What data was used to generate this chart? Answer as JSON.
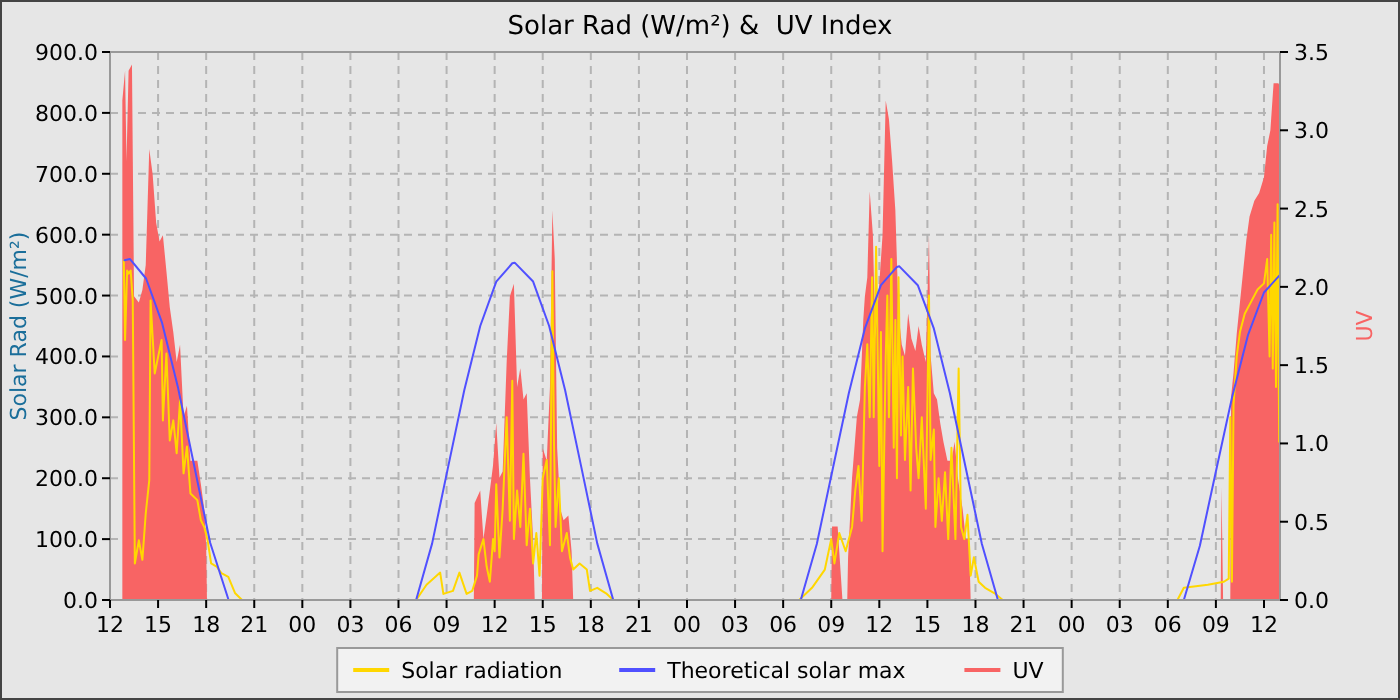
{
  "chart_data": {
    "type": "line",
    "title": "Solar Rad (W/m²) &  UV Index",
    "ylabel": "Solar Rad (W/m²)",
    "y2label": "UV",
    "xlim": [
      12,
      85
    ],
    "xticks": [
      {
        "value": 12,
        "label": "12"
      },
      {
        "value": 15,
        "label": "15"
      },
      {
        "value": 18,
        "label": "18"
      },
      {
        "value": 21,
        "label": "21"
      },
      {
        "value": 24,
        "label": "00"
      },
      {
        "value": 27,
        "label": "03"
      },
      {
        "value": 30,
        "label": "06"
      },
      {
        "value": 33,
        "label": "09"
      },
      {
        "value": 36,
        "label": "12"
      },
      {
        "value": 39,
        "label": "15"
      },
      {
        "value": 42,
        "label": "18"
      },
      {
        "value": 45,
        "label": "21"
      },
      {
        "value": 48,
        "label": "00"
      },
      {
        "value": 51,
        "label": "03"
      },
      {
        "value": 54,
        "label": "06"
      },
      {
        "value": 57,
        "label": "09"
      },
      {
        "value": 60,
        "label": "12"
      },
      {
        "value": 63,
        "label": "15"
      },
      {
        "value": 66,
        "label": "18"
      },
      {
        "value": 69,
        "label": "21"
      },
      {
        "value": 72,
        "label": "00"
      },
      {
        "value": 75,
        "label": "03"
      },
      {
        "value": 78,
        "label": "06"
      },
      {
        "value": 81,
        "label": "09"
      },
      {
        "value": 84,
        "label": "12"
      }
    ],
    "ylim": [
      0,
      900
    ],
    "yticks": [
      {
        "value": 0,
        "label": "0.0"
      },
      {
        "value": 100,
        "label": "100.0"
      },
      {
        "value": 200,
        "label": "200.0"
      },
      {
        "value": 300,
        "label": "300.0"
      },
      {
        "value": 400,
        "label": "400.0"
      },
      {
        "value": 500,
        "label": "500.0"
      },
      {
        "value": 600,
        "label": "600.0"
      },
      {
        "value": 700,
        "label": "700.0"
      },
      {
        "value": 800,
        "label": "800.0"
      },
      {
        "value": 900,
        "label": "900.0"
      }
    ],
    "y2lim": [
      0,
      3.5
    ],
    "y2ticks": [
      {
        "value": 0,
        "label": "0.0"
      },
      {
        "value": 0.5,
        "label": "0.5"
      },
      {
        "value": 1,
        "label": "1.0"
      },
      {
        "value": 1.5,
        "label": "1.5"
      },
      {
        "value": 2,
        "label": "2.0"
      },
      {
        "value": 2.5,
        "label": "2.5"
      },
      {
        "value": 3,
        "label": "3.0"
      },
      {
        "value": 3.5,
        "label": "3.5"
      }
    ],
    "grid": true,
    "legend": "bottom",
    "series": [
      {
        "name": "Solar radiation",
        "color": "#ffd700",
        "x": [
          12.86,
          12.94,
          13.07,
          13.16,
          13.29,
          13.42,
          13.55,
          13.8,
          14.02,
          14.23,
          14.45,
          14.53,
          14.79,
          14.96,
          15.22,
          15.3,
          15.52,
          15.73,
          15.95,
          16.16,
          16.37,
          16.59,
          16.8,
          17.02,
          17.45,
          17.67,
          17.88,
          18.09,
          18.31,
          18.65,
          18.95,
          19.38,
          19.81,
          20.24,
          30.8,
          31.1,
          31.75,
          32.6,
          32.8,
          33.4,
          33.8,
          34.25,
          34.6,
          34.9,
          35.0,
          35.3,
          35.5,
          35.7,
          35.9,
          36.0,
          36.1,
          36.3,
          36.5,
          36.75,
          36.95,
          37.1,
          37.2,
          37.4,
          37.6,
          37.8,
          38.0,
          38.2,
          38.4,
          38.6,
          38.8,
          39.0,
          39.25,
          39.45,
          39.6,
          39.7,
          39.8,
          40.0,
          40.2,
          40.5,
          40.7,
          40.9,
          41.3,
          41.75,
          41.95,
          42.4,
          43.0,
          43.4,
          55.0,
          55.8,
          56.6,
          57.0,
          57.2,
          57.5,
          57.9,
          58.3,
          58.5,
          58.7,
          58.9,
          59.1,
          59.25,
          59.4,
          59.55,
          59.65,
          59.8,
          60.0,
          60.1,
          60.2,
          60.4,
          60.5,
          60.6,
          60.75,
          60.9,
          61.0,
          61.1,
          61.2,
          61.35,
          61.45,
          61.6,
          61.8,
          61.95,
          62.1,
          62.3,
          62.45,
          62.65,
          62.9,
          63.1,
          63.2,
          63.4,
          63.5,
          63.7,
          63.9,
          64.1,
          64.3,
          64.5,
          64.75,
          64.95,
          65.1,
          65.3,
          65.5,
          65.7,
          65.9,
          66.2,
          66.6,
          67.25,
          67.7,
          78.6,
          79.0,
          80.5,
          81.5,
          81.8,
          81.9,
          82.0,
          82.1,
          82.3,
          82.5,
          82.8,
          83.2,
          83.6,
          84.0,
          84.2,
          84.35,
          84.45,
          84.55,
          84.65,
          84.75,
          84.85,
          84.95
        ],
        "values": [
          558,
          427,
          541,
          536,
          541,
          492,
          60,
          98,
          66,
          142,
          197,
          492,
          372,
          394,
          427,
          295,
          405,
          262,
          295,
          241,
          328,
          208,
          252,
          175,
          164,
          131,
          120,
          98,
          60,
          55,
          44,
          38,
          11,
          0,
          0,
          0,
          25,
          45,
          10,
          15,
          45,
          10,
          15,
          40,
          75,
          100,
          55,
          30,
          100,
          80,
          190,
          70,
          150,
          300,
          130,
          360,
          100,
          180,
          120,
          240,
          90,
          150,
          60,
          110,
          40,
          200,
          230,
          90,
          540,
          260,
          120,
          200,
          80,
          110,
          70,
          50,
          60,
          50,
          15,
          20,
          10,
          0,
          0,
          20,
          50,
          100,
          60,
          110,
          80,
          120,
          180,
          220,
          130,
          350,
          420,
          300,
          530,
          300,
          580,
          220,
          440,
          80,
          400,
          500,
          300,
          560,
          250,
          460,
          200,
          530,
          270,
          400,
          230,
          350,
          180,
          380,
          250,
          200,
          300,
          150,
          500,
          230,
          280,
          120,
          200,
          130,
          210,
          100,
          250,
          100,
          380,
          120,
          100,
          140,
          40,
          70,
          30,
          20,
          10,
          0,
          0,
          20,
          25,
          30,
          35,
          300,
          30,
          320,
          400,
          440,
          470,
          490,
          510,
          520,
          560,
          400,
          600,
          380,
          620,
          350,
          650,
          260
        ]
      },
      {
        "name": "Theoretical solar max",
        "color": "#5050ff",
        "x": [
          12.9,
          13.25,
          14.25,
          15.25,
          16.25,
          17.25,
          18.25,
          19.4,
          31.1,
          32.1,
          33.1,
          34.1,
          35.1,
          36.1,
          37.1,
          37.25,
          38.4,
          39.4,
          40.4,
          41.4,
          42.4,
          43.4,
          55.1,
          56.1,
          57.1,
          58.1,
          59.1,
          60.1,
          61.1,
          61.25,
          62.4,
          63.4,
          64.4,
          65.4,
          66.4,
          67.4,
          79.0,
          80.0,
          81.0,
          82.0,
          83.0,
          84.0,
          85.0
        ],
        "values": [
          558,
          560,
          528,
          455,
          348,
          221,
          94,
          0,
          0,
          93,
          219,
          344,
          450,
          523,
          553,
          554,
          523,
          450,
          344,
          219,
          93,
          0,
          0,
          92,
          216,
          340,
          446,
          517,
          547,
          548,
          517,
          446,
          340,
          216,
          92,
          0,
          0,
          89,
          211,
          332,
          435,
          505,
          534
        ]
      },
      {
        "name": "UV",
        "type": "area",
        "axis": "y2",
        "color": "#f86464",
        "x": [
          12.77,
          12.94,
          13.03,
          13.16,
          13.37,
          13.5,
          13.8,
          14.02,
          14.23,
          14.45,
          14.66,
          14.88,
          15.09,
          15.3,
          15.52,
          15.73,
          15.95,
          16.16,
          16.37,
          16.59,
          16.8,
          17.02,
          17.45,
          17.67,
          17.88,
          18.0,
          18.05,
          34.7,
          34.75,
          35.1,
          35.3,
          35.5,
          35.7,
          35.9,
          36.1,
          36.3,
          36.5,
          36.75,
          36.95,
          37.2,
          37.4,
          37.6,
          37.8,
          38.0,
          38.2,
          38.4,
          38.5,
          38.95,
          39.0,
          39.25,
          39.45,
          39.6,
          39.75,
          39.9,
          40.1,
          40.3,
          40.6,
          40.8,
          40.9,
          57.0,
          57.05,
          57.4,
          57.7,
          58.0,
          58.05,
          58.3,
          58.6,
          58.8,
          59.0,
          59.1,
          59.25,
          59.4,
          59.6,
          59.75,
          60.0,
          60.2,
          60.4,
          60.6,
          60.8,
          61.0,
          61.2,
          61.4,
          61.6,
          61.8,
          62.0,
          62.25,
          62.45,
          62.65,
          62.9,
          63.1,
          63.2,
          63.4,
          63.6,
          63.8,
          64.0,
          64.25,
          64.5,
          64.7,
          64.9,
          65.2,
          65.4,
          65.6,
          65.7,
          81.3,
          81.35,
          81.45,
          81.9,
          81.95,
          82.1,
          82.3,
          82.5,
          82.7,
          82.9,
          83.1,
          83.4,
          83.7,
          84.0,
          84.2,
          84.4,
          84.6,
          84.9,
          85.0
        ],
        "values": [
          3.19,
          3.38,
          2.8,
          3.38,
          3.42,
          1.94,
          1.9,
          1.98,
          2.14,
          2.88,
          2.72,
          2.41,
          2.29,
          2.33,
          2.1,
          1.87,
          1.71,
          1.52,
          1.63,
          1.17,
          1.24,
          0.89,
          0.89,
          0.74,
          0.58,
          0.35,
          0,
          0,
          0.62,
          0.7,
          0.39,
          0.54,
          0.7,
          0.86,
          1.13,
          0.78,
          0.82,
          1.52,
          1.94,
          2.02,
          1.36,
          1.48,
          1.28,
          1.32,
          0.78,
          0.39,
          0,
          0,
          0.97,
          0.89,
          1.36,
          2.49,
          2.18,
          0.97,
          0.58,
          0.51,
          0.54,
          0.31,
          0,
          0,
          0.47,
          0.47,
          0,
          0,
          0.27,
          0.78,
          1.17,
          1.28,
          1.79,
          1.94,
          2.06,
          2.61,
          2.33,
          1.67,
          2.02,
          2.33,
          3.19,
          3.07,
          2.8,
          2.49,
          1.83,
          1.63,
          1.56,
          1.83,
          1.67,
          1.59,
          1.75,
          1.63,
          1.52,
          2.33,
          1.56,
          1.32,
          1.28,
          1.13,
          1.01,
          0.89,
          0.89,
          1.01,
          0.78,
          0.58,
          0.39,
          0.39,
          0,
          0,
          0.72,
          0,
          0,
          1.3,
          1.45,
          1.7,
          1.9,
          2.1,
          2.3,
          2.45,
          2.55,
          2.6,
          2.7,
          2.9,
          3.0,
          3.3,
          3.3,
          3.28
        ]
      }
    ]
  }
}
